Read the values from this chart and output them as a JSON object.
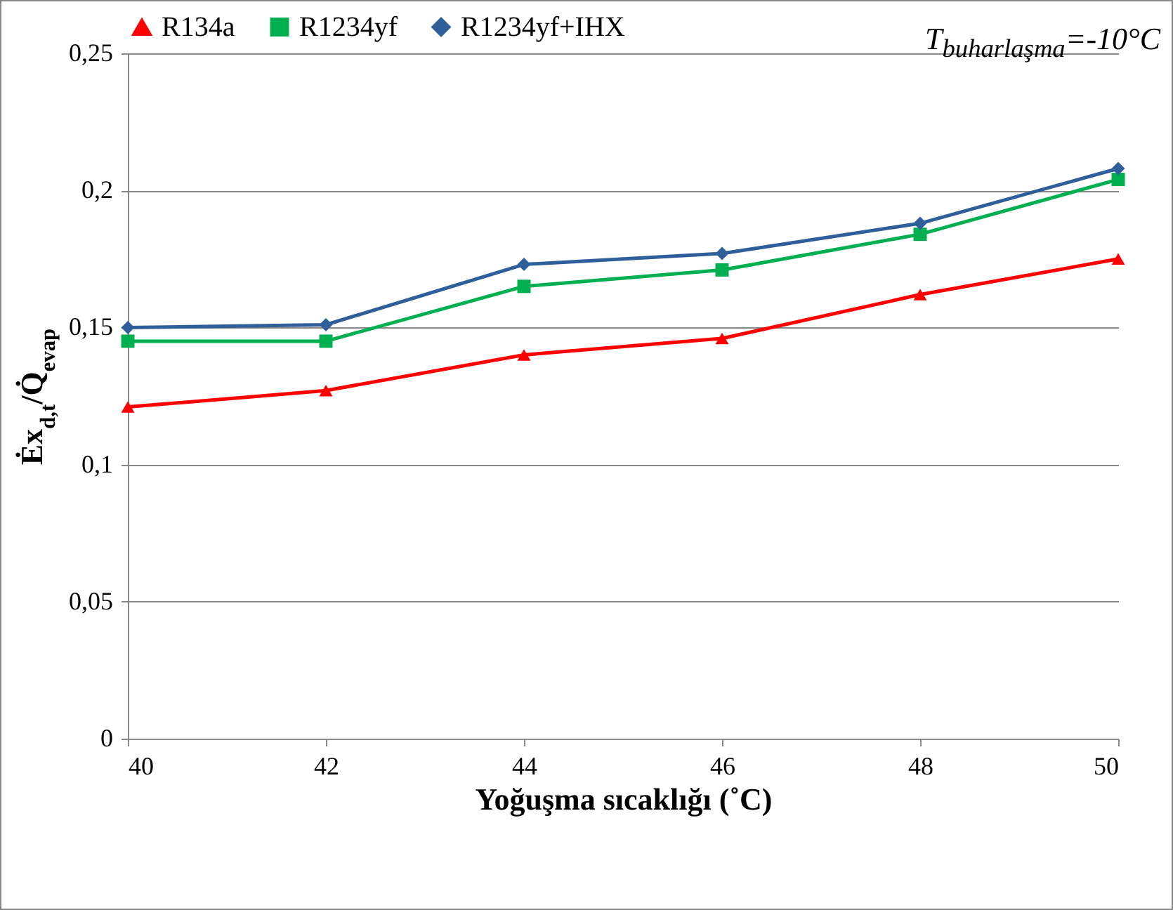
{
  "chart_data": {
    "type": "line",
    "xlabel": "Yoğuşma sıcaklığı (˚C)",
    "ylabel": "Ėx$_{d,t}$/Q̇$_{evap}$",
    "x": [
      40,
      42,
      44,
      46,
      48,
      50
    ],
    "xlim": [
      40,
      50
    ],
    "xticks": [
      40,
      42,
      44,
      46,
      48,
      50
    ],
    "ylim": [
      0,
      0.25
    ],
    "yticks": [
      {
        "value": 0,
        "label": "0"
      },
      {
        "value": 0.05,
        "label": "0,05"
      },
      {
        "value": 0.1,
        "label": "0,1"
      },
      {
        "value": 0.15,
        "label": "0,15"
      },
      {
        "value": 0.2,
        "label": "0,2"
      },
      {
        "value": 0.25,
        "label": "0,25"
      }
    ],
    "grid": "y",
    "legend": "top",
    "line_style": "solid",
    "annotations": [
      "T$_{buharlaşma}$=-10°C"
    ],
    "series": [
      {
        "name": "R134a",
        "color": "#ff0000",
        "marker": "triangle",
        "values": [
          0.121,
          0.127,
          0.14,
          0.146,
          0.162,
          0.175
        ]
      },
      {
        "name": "R1234yf",
        "color": "#00b050",
        "marker": "square",
        "values": [
          0.145,
          0.145,
          0.165,
          0.171,
          0.184,
          0.204
        ]
      },
      {
        "name": "R1234yf+IHX",
        "color": "#2e5f9a",
        "marker": "diamond",
        "values": [
          0.15,
          0.151,
          0.173,
          0.177,
          0.188,
          0.208
        ]
      }
    ]
  }
}
